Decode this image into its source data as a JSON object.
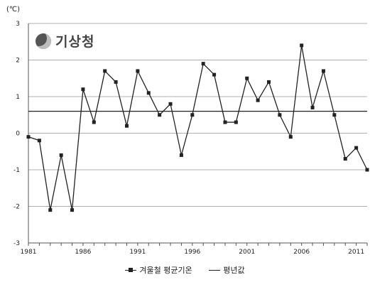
{
  "chart_data": {
    "type": "line",
    "unit_label": "(℃)",
    "x": [
      1981,
      1982,
      1983,
      1984,
      1985,
      1986,
      1987,
      1988,
      1989,
      1990,
      1991,
      1992,
      1993,
      1994,
      1995,
      1996,
      1997,
      1998,
      1999,
      2000,
      2001,
      2002,
      2003,
      2004,
      2005,
      2006,
      2007,
      2008,
      2009,
      2010,
      2011,
      2012
    ],
    "series": [
      {
        "name": "겨울철 평균기온",
        "values": [
          -0.1,
          -0.2,
          -2.1,
          -0.6,
          -2.1,
          1.2,
          0.3,
          1.7,
          1.4,
          0.2,
          1.7,
          1.1,
          0.5,
          0.8,
          -0.6,
          0.5,
          1.9,
          1.6,
          0.3,
          0.3,
          1.5,
          0.9,
          1.4,
          0.5,
          -0.1,
          2.4,
          0.7,
          1.7,
          0.5,
          -0.7,
          -0.4,
          -1.0
        ]
      },
      {
        "name": "평년값",
        "values": [
          0.6,
          0.6,
          0.6,
          0.6,
          0.6,
          0.6,
          0.6,
          0.6,
          0.6,
          0.6,
          0.6,
          0.6,
          0.6,
          0.6,
          0.6,
          0.6,
          0.6,
          0.6,
          0.6,
          0.6,
          0.6,
          0.6,
          0.6,
          0.6,
          0.6,
          0.6,
          0.6,
          0.6,
          0.6,
          0.6,
          0.6,
          0.6
        ]
      }
    ],
    "ylim": [
      -3,
      3
    ],
    "yticks": [
      -3,
      -2,
      -1,
      0,
      1,
      2,
      3
    ],
    "xticks": [
      1981,
      1986,
      1991,
      1996,
      2001,
      2006,
      2011
    ],
    "grid": true,
    "legend_position": "bottom"
  },
  "logo": {
    "text": "기상청"
  },
  "colors": {
    "line": "#222222",
    "grid": "#b0b0b0",
    "axis": "#555555"
  }
}
